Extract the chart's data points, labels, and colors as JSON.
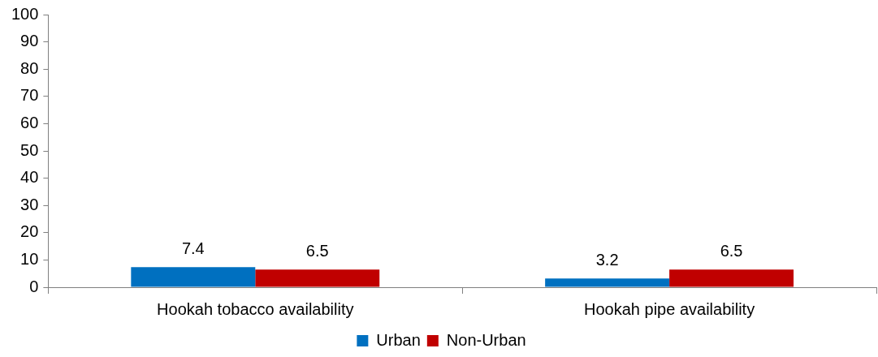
{
  "chart_data": {
    "type": "bar",
    "categories": [
      "Hookah tobacco availability",
      "Hookah pipe availability"
    ],
    "series": [
      {
        "name": "Urban",
        "color": "#0070c0",
        "values": [
          7.4,
          3.2
        ]
      },
      {
        "name": "Non-Urban",
        "color": "#c00000",
        "values": [
          6.5,
          6.5
        ]
      }
    ],
    "ylim": [
      0,
      100
    ],
    "yticks": [
      0,
      10,
      20,
      30,
      40,
      50,
      60,
      70,
      80,
      90,
      100
    ],
    "grid": false,
    "legend": "bottom",
    "data_labels": true
  }
}
